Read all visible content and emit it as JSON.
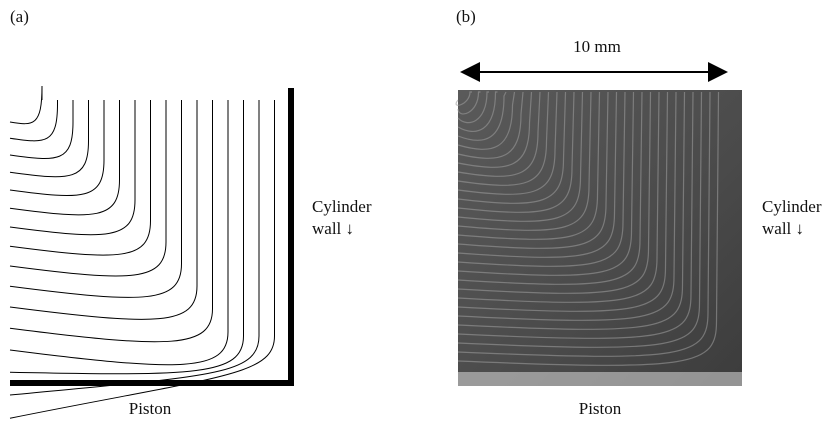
{
  "panel_a": {
    "label": "(a)",
    "wall_label": [
      "Cylinder",
      "wall ↓"
    ],
    "bottom_label": "Piston"
  },
  "panel_b": {
    "label": "(b)",
    "scale_label": "10 mm",
    "wall_label": [
      "Cylinder",
      "wall ↓"
    ],
    "bottom_label": "Piston"
  }
}
